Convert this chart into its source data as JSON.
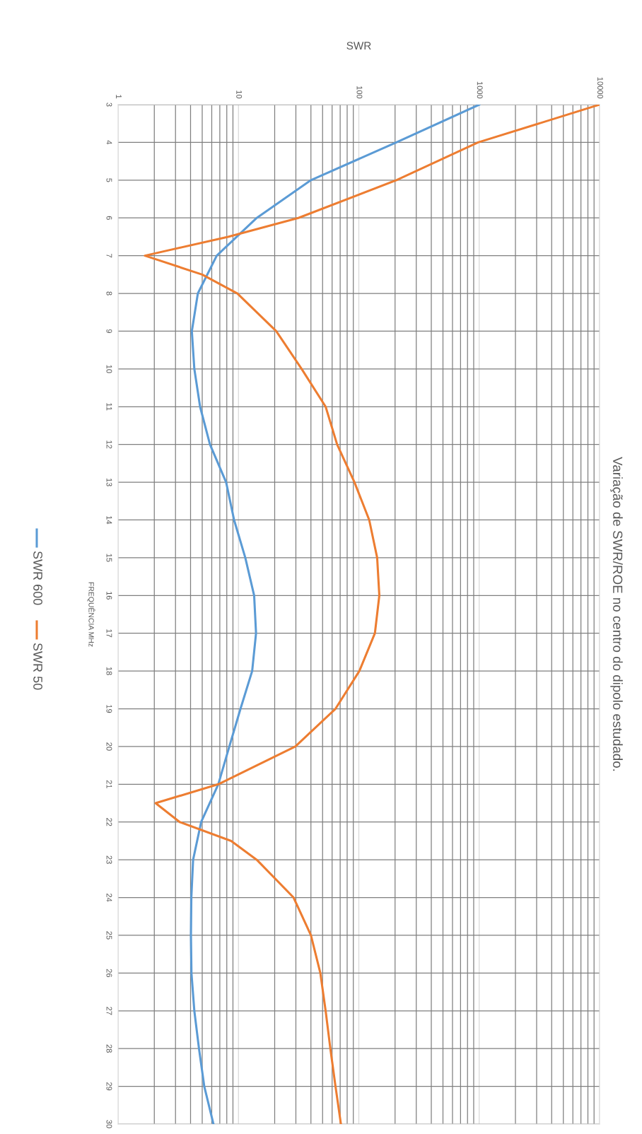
{
  "chart_data": {
    "type": "line",
    "title": "Variação de SWR/ROE no centro do dipolo estudado.",
    "xlabel": "SWR",
    "ylabel": "FREQUÊNCIA MHz",
    "series": [
      {
        "name": "SWR 600",
        "color": "#5b9bd5",
        "values": [
          3,
          4,
          5,
          6,
          7,
          8,
          9,
          10,
          11,
          12,
          13,
          14,
          15,
          16,
          17,
          18,
          19,
          20,
          21,
          22,
          23,
          24,
          25,
          26,
          27,
          28,
          29,
          30
        ],
        "x": [
          1000,
          205,
          40,
          14.2,
          6.6,
          4.6,
          4.1,
          4.3,
          4.8,
          5.8,
          7.9,
          9.2,
          11.4,
          13.5,
          14,
          13,
          10.4,
          8.4,
          6.8,
          4.9,
          4.2,
          4.06,
          4.03,
          4.07,
          4.3,
          4.7,
          5.2,
          6.2
        ]
      },
      {
        "name": "SWR 50",
        "color": "#ed7d31",
        "values": [
          3,
          4,
          5,
          6,
          6.5,
          7,
          7.5,
          8,
          9,
          10,
          11,
          12,
          13,
          14,
          15,
          16,
          17,
          18,
          19,
          20,
          20.5,
          21,
          21.5,
          22,
          22.5,
          23,
          24,
          25,
          26,
          27,
          28,
          29,
          30
        ],
        "x": [
          10000,
          980,
          205,
          31.5,
          8.2,
          1.67,
          5,
          9.8,
          20.6,
          33.5,
          53,
          66,
          92,
          122,
          142,
          148,
          136,
          101,
          64,
          29.7,
          14.2,
          6.8,
          2.05,
          3.25,
          8.7,
          14.2,
          28.7,
          40,
          47.9,
          53,
          58,
          64,
          71
        ]
      }
    ],
    "ylim": [
      30,
      3
    ],
    "yticks": [
      3,
      4,
      5,
      6,
      7,
      8,
      9,
      10,
      11,
      12,
      13,
      14,
      15,
      16,
      17,
      18,
      19,
      20,
      21,
      22,
      23,
      24,
      25,
      26,
      27,
      28,
      29,
      30
    ],
    "xlim": [
      1,
      10000
    ],
    "xticks": [
      1,
      10,
      100,
      1000,
      10000
    ],
    "log": "x",
    "grid": true,
    "legend": "left",
    "marker": "none",
    "line_style": "solid"
  }
}
